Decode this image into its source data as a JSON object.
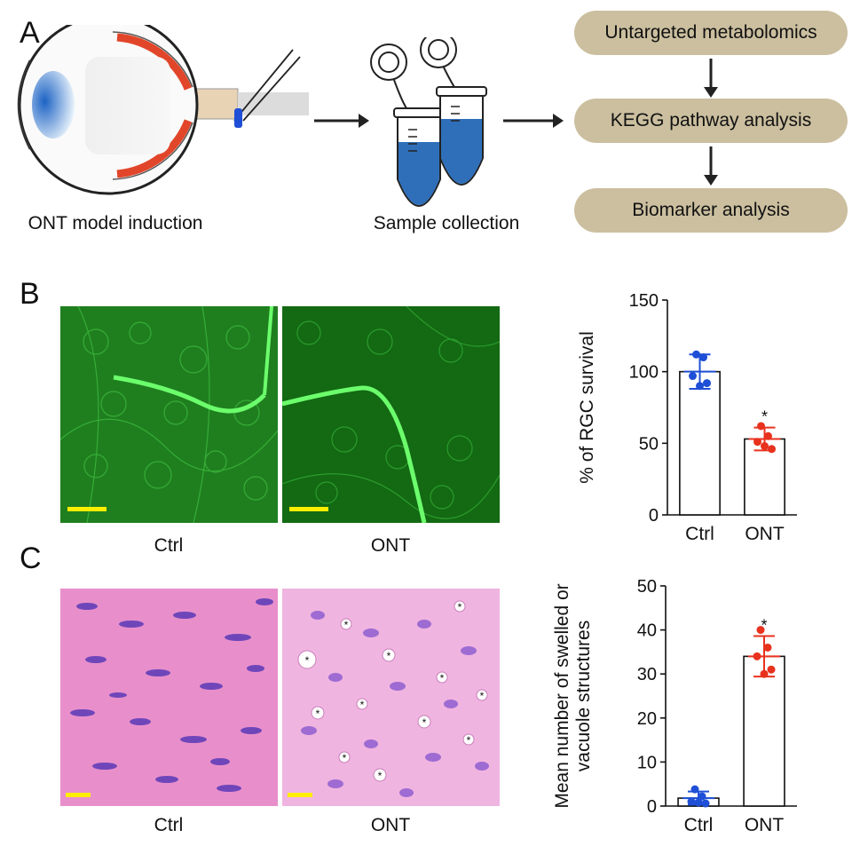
{
  "panels": {
    "A": "A",
    "B": "B",
    "C": "C"
  },
  "panel_a": {
    "step1_caption": "ONT model induction",
    "step2_caption": "Sample collection",
    "workflow": [
      "Untargeted metabolomics",
      "KEGG pathway analysis",
      "Biomarker analysis"
    ],
    "colors": {
      "pill": "#cbbf9f",
      "tube_fill": "#2f6fba",
      "retina": "#e2462a",
      "lens": "#3e8fd6"
    }
  },
  "panel_b": {
    "image_labels": [
      "Ctrl",
      "ONT"
    ],
    "image_color": "#1b8a1b",
    "scale_bar_color": "#ffee00"
  },
  "panel_c": {
    "image_labels": [
      "Ctrl",
      "ONT"
    ],
    "image_color": "#e68fcc",
    "marker_symbol": "*"
  },
  "chart_data": [
    {
      "type": "bar",
      "panel": "B",
      "categories": [
        "Ctrl",
        "ONT"
      ],
      "values": [
        100,
        53
      ],
      "error": [
        12,
        8
      ],
      "points": [
        [
          112,
          110,
          97,
          92,
          90
        ],
        [
          62,
          55,
          51,
          46,
          48
        ]
      ],
      "colors": [
        "#1f4fd6",
        "#e8321e"
      ],
      "significance": [
        "",
        "*"
      ],
      "ylabel": "% of RGC survival",
      "ylim": [
        0,
        150
      ],
      "yticks": [
        0,
        50,
        100,
        150
      ],
      "grid": false
    },
    {
      "type": "bar",
      "panel": "C",
      "categories": [
        "Ctrl",
        "ONT"
      ],
      "values": [
        1.8,
        34
      ],
      "error": [
        1.5,
        4.6
      ],
      "points": [
        [
          3.8,
          2.2,
          1.0,
          0.6,
          0.8
        ],
        [
          40,
          36,
          34,
          31,
          30
        ]
      ],
      "colors": [
        "#1f4fd6",
        "#e8321e"
      ],
      "significance": [
        "",
        "*"
      ],
      "ylabel_lines": [
        "Mean number of swelled or",
        "vacuole structures"
      ],
      "ylim": [
        0,
        50
      ],
      "yticks": [
        0,
        10,
        20,
        30,
        40,
        50
      ],
      "grid": false
    }
  ]
}
